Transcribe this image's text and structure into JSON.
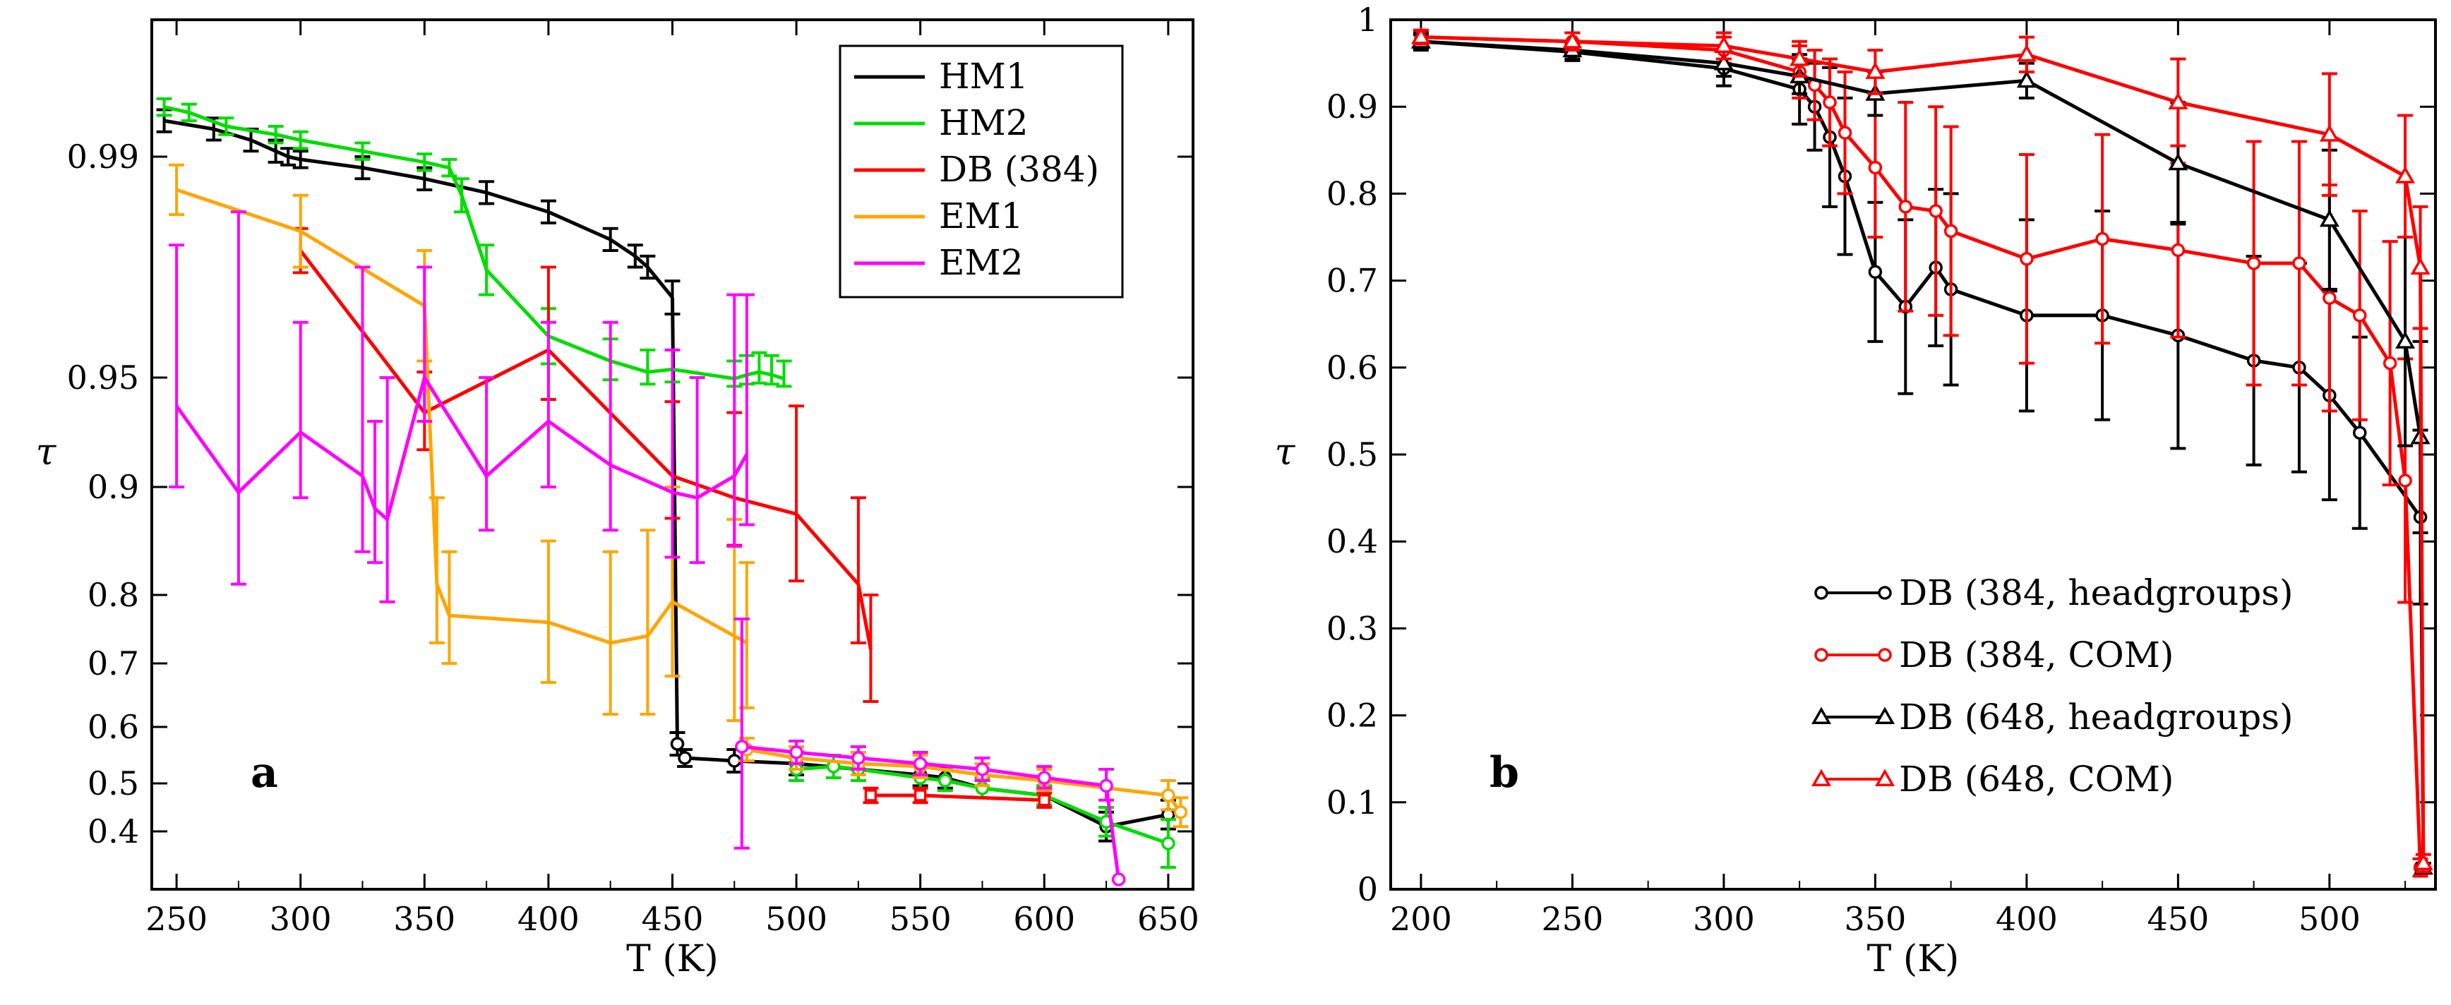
{
  "figure": {
    "panel_labels": [
      "a",
      "b"
    ]
  },
  "chart_data": [
    {
      "panel": "a",
      "type": "line",
      "xlabel": "T (K)",
      "ylabel": "τ",
      "xlim": [
        240,
        660
      ],
      "x_ticks": [
        "250",
        "300",
        "350",
        "400",
        "450",
        "500",
        "550",
        "600",
        "650"
      ],
      "y_ticks": [
        "0.4",
        "0.5",
        "0.6",
        "0.7",
        "0.8",
        "0.9",
        "0.95",
        "0.99"
      ],
      "legend_position": "top-right",
      "series": [
        {
          "name": "HM1",
          "color": "#000000",
          "marker": "none",
          "points": [
            [
              245,
              0.9965,
              0.002
            ],
            [
              265,
              0.995,
              0.002
            ],
            [
              280,
              0.993,
              0.002
            ],
            [
              290,
              0.991,
              0.002
            ],
            [
              295,
              0.99,
              0.0015
            ],
            [
              300,
              0.9895,
              0.0015
            ],
            [
              325,
              0.988,
              0.002
            ],
            [
              350,
              0.986,
              0.002
            ],
            [
              375,
              0.9835,
              0.002
            ],
            [
              400,
              0.98,
              0.002
            ],
            [
              425,
              0.975,
              0.002
            ],
            [
              435,
              0.972,
              0.002
            ],
            [
              440,
              0.97,
              0.002
            ],
            [
              450,
              0.9645,
              0.003
            ]
          ],
          "step": [
            [
              450,
              0.9645
            ],
            [
              452,
              0.57
            ]
          ]
        },
        {
          "name": "HM1_low",
          "legend": false,
          "color": "#000000",
          "marker": "circle",
          "points": [
            [
              452,
              0.57,
              0.02
            ],
            [
              455,
              0.545,
              0.015
            ],
            [
              475,
              0.54,
              0.02
            ],
            [
              500,
              0.535,
              0.02
            ],
            [
              525,
              0.525,
              0.02
            ],
            [
              550,
              0.515,
              0.02
            ],
            [
              560,
              0.51,
              0.02
            ],
            [
              575,
              0.49,
              0.02
            ],
            [
              600,
              0.475,
              0.02
            ],
            [
              625,
              0.41,
              0.03
            ],
            [
              650,
              0.435,
              0.03
            ]
          ]
        },
        {
          "name": "HM2",
          "color": "#00dd00",
          "marker": "none",
          "points": [
            [
              245,
              0.999,
              0.0015
            ],
            [
              255,
              0.998,
              0.0015
            ],
            [
              270,
              0.9955,
              0.0015
            ],
            [
              290,
              0.994,
              0.0015
            ],
            [
              300,
              0.993,
              0.0015
            ],
            [
              325,
              0.991,
              0.0015
            ],
            [
              350,
              0.989,
              0.0015
            ],
            [
              360,
              0.988,
              0.0015
            ],
            [
              365,
              0.983,
              0.003
            ],
            [
              375,
              0.9695,
              0.0045
            ],
            [
              400,
              0.9575,
              0.005
            ],
            [
              425,
              0.953,
              0.004
            ],
            [
              440,
              0.951,
              0.004
            ],
            [
              450,
              0.9515,
              0.0035
            ],
            [
              475,
              0.9495,
              0.0035
            ],
            [
              480,
              0.9505,
              0.0035
            ],
            [
              485,
              0.951,
              0.0035
            ],
            [
              490,
              0.9505,
              0.0035
            ],
            [
              495,
              0.9495,
              0.0035
            ]
          ]
        },
        {
          "name": "HM2_low",
          "legend": false,
          "color": "#00dd00",
          "marker": "circle",
          "points": [
            [
              500,
              0.525,
              0.02
            ],
            [
              515,
              0.53,
              0.02
            ],
            [
              525,
              0.525,
              0.02
            ],
            [
              550,
              0.51,
              0.02
            ],
            [
              560,
              0.505,
              0.02
            ],
            [
              575,
              0.49,
              0.02
            ],
            [
              600,
              0.475,
              0.02
            ],
            [
              625,
              0.42,
              0.03
            ],
            [
              650,
              0.375,
              0.05
            ]
          ]
        },
        {
          "name": "DB (384)",
          "color": "#ff0000",
          "marker": "none",
          "points": [
            [
              300,
              0.973,
              0.004
            ],
            [
              350,
              0.934,
              0.017
            ],
            [
              400,
              0.955,
              0.015
            ],
            [
              450,
              0.905,
              0.034
            ],
            [
              475,
              0.89,
              0.044
            ],
            [
              500,
              0.875,
              0.062
            ],
            [
              525,
              0.81,
              0.08
            ],
            [
              530,
              0.72,
              0.08
            ]
          ]
        },
        {
          "name": "DB_low",
          "legend": false,
          "color": "#ff0000",
          "marker": "square",
          "points": [
            [
              530,
              0.475,
              0.015
            ],
            [
              550,
              0.475,
              0.015
            ],
            [
              600,
              0.465,
              0.015
            ]
          ]
        },
        {
          "name": "EM1",
          "color": "#ffa500",
          "marker": "none",
          "points": [
            [
              250,
              0.984,
              0.0045
            ],
            [
              300,
              0.9765,
              0.0065
            ],
            [
              350,
              0.963,
              0.01
            ],
            [
              355,
              0.81,
              0.08
            ],
            [
              360,
              0.77,
              0.07
            ],
            [
              400,
              0.76,
              0.09
            ],
            [
              425,
              0.73,
              0.11
            ],
            [
              440,
              0.74,
              0.12
            ],
            [
              450,
              0.79,
              0.11
            ],
            [
              475,
              0.74,
              0.13
            ],
            [
              480,
              0.73,
              0.1
            ]
          ]
        },
        {
          "name": "EM1_low",
          "legend": false,
          "color": "#ffa500",
          "marker": "circle",
          "points": [
            [
              480,
              0.56,
              0.02
            ],
            [
              500,
              0.545,
              0.02
            ],
            [
              525,
              0.535,
              0.02
            ],
            [
              550,
              0.53,
              0.02
            ],
            [
              575,
              0.515,
              0.02
            ],
            [
              600,
              0.505,
              0.02
            ],
            [
              650,
              0.475,
              0.03
            ],
            [
              655,
              0.44,
              0.03
            ]
          ]
        },
        {
          "name": "EM2",
          "color": "#ff00ff",
          "marker": "none",
          "points": [
            [
              250,
              0.937,
              0.037
            ],
            [
              275,
              0.895,
              0.085
            ],
            [
              300,
              0.925,
              0.035
            ],
            [
              325,
              0.905,
              0.065
            ],
            [
              330,
              0.88,
              0.05
            ],
            [
              335,
              0.87,
              0.08
            ],
            [
              350,
              0.95,
              0.02
            ],
            [
              375,
              0.905,
              0.045
            ],
            [
              400,
              0.93,
              0.03
            ],
            [
              425,
              0.91,
              0.05
            ],
            [
              450,
              0.895,
              0.06
            ],
            [
              460,
              0.89,
              0.06
            ],
            [
              475,
              0.905,
              0.06
            ],
            [
              480,
              0.915,
              0.05
            ]
          ]
        },
        {
          "name": "EM2_low",
          "legend": false,
          "color": "#ff00ff",
          "marker": "circle",
          "points": [
            [
              478,
              0.565,
              0.2
            ],
            [
              500,
              0.555,
              0.02
            ],
            [
              525,
              0.545,
              0.02
            ],
            [
              550,
              0.535,
              0.02
            ],
            [
              575,
              0.525,
              0.02
            ],
            [
              600,
              0.51,
              0.02
            ],
            [
              625,
              0.495,
              0.03
            ],
            [
              630,
              0.3,
              0
            ]
          ]
        }
      ]
    },
    {
      "panel": "b",
      "type": "line",
      "xlabel": "T (K)",
      "ylabel": "τ",
      "xlim": [
        190,
        535
      ],
      "ylim": [
        0,
        1
      ],
      "x_ticks": [
        "200",
        "250",
        "300",
        "350",
        "400",
        "450",
        "500"
      ],
      "y_ticks": [
        "0",
        "0.1",
        "0.2",
        "0.3",
        "0.4",
        "0.5",
        "0.6",
        "0.7",
        "0.8",
        "0.9",
        "1"
      ],
      "legend_position": "bottom-right",
      "series": [
        {
          "name": "DB (384, headgroups)",
          "color": "#000000",
          "marker": "circle",
          "points": [
            [
              200,
              0.975,
              0.01
            ],
            [
              250,
              0.963,
              0.01
            ],
            [
              300,
              0.944,
              0.02
            ],
            [
              325,
              0.92,
              0.04
            ],
            [
              330,
              0.9,
              0.05
            ],
            [
              335,
              0.865,
              0.08
            ],
            [
              340,
              0.82,
              0.09
            ],
            [
              350,
              0.71,
              0.08
            ],
            [
              360,
              0.67,
              0.1
            ],
            [
              370,
              0.715,
              0.09
            ],
            [
              375,
              0.69,
              0.11
            ],
            [
              400,
              0.66,
              0.11
            ],
            [
              425,
              0.66,
              0.12
            ],
            [
              450,
              0.637,
              0.13
            ],
            [
              475,
              0.608,
              0.12
            ],
            [
              490,
              0.6,
              0.12
            ],
            [
              500,
              0.568,
              0.12
            ],
            [
              510,
              0.525,
              0.11
            ],
            [
              530,
              0.428,
              0.1
            ]
          ]
        },
        {
          "name": "DB (384, COM)",
          "color": "#ff0000",
          "marker": "circle",
          "points": [
            [
              200,
              0.98,
              0.008
            ],
            [
              250,
              0.975,
              0.01
            ],
            [
              300,
              0.965,
              0.015
            ],
            [
              325,
              0.94,
              0.03
            ],
            [
              330,
              0.925,
              0.04
            ],
            [
              335,
              0.905,
              0.05
            ],
            [
              340,
              0.87,
              0.07
            ],
            [
              350,
              0.83,
              0.08
            ],
            [
              360,
              0.785,
              0.12
            ],
            [
              370,
              0.78,
              0.12
            ],
            [
              375,
              0.757,
              0.12
            ],
            [
              400,
              0.725,
              0.12
            ],
            [
              425,
              0.748,
              0.12
            ],
            [
              450,
              0.735,
              0.1
            ],
            [
              475,
              0.72,
              0.14
            ],
            [
              490,
              0.72,
              0.14
            ],
            [
              500,
              0.68,
              0.13
            ],
            [
              510,
              0.66,
              0.12
            ],
            [
              520,
              0.605,
              0.14
            ],
            [
              525,
              0.47,
              0.14
            ],
            [
              530,
              0.025,
              0.01
            ]
          ]
        },
        {
          "name": "DB (648, headgroups)",
          "color": "#000000",
          "marker": "triangle",
          "points": [
            [
              200,
              0.975,
              0.008
            ],
            [
              250,
              0.965,
              0.01
            ],
            [
              300,
              0.95,
              0.015
            ],
            [
              325,
              0.935,
              0.02
            ],
            [
              350,
              0.915,
              0.025
            ],
            [
              400,
              0.93,
              0.02
            ],
            [
              450,
              0.835,
              0.07
            ],
            [
              500,
              0.77,
              0.08
            ],
            [
              525,
              0.63,
              0.12
            ],
            [
              530,
              0.52,
              0.11
            ],
            [
              531,
              0.025,
              0.005
            ]
          ]
        },
        {
          "name": "DB (648, COM)",
          "color": "#ff0000",
          "marker": "triangle",
          "points": [
            [
              200,
              0.98,
              0.008
            ],
            [
              250,
              0.975,
              0.01
            ],
            [
              300,
              0.97,
              0.015
            ],
            [
              325,
              0.955,
              0.02
            ],
            [
              350,
              0.94,
              0.025
            ],
            [
              400,
              0.96,
              0.02
            ],
            [
              450,
              0.905,
              0.05
            ],
            [
              500,
              0.868,
              0.07
            ],
            [
              525,
              0.82,
              0.07
            ],
            [
              530,
              0.715,
              0.07
            ],
            [
              531,
              0.03,
              0.01
            ]
          ]
        }
      ]
    }
  ]
}
